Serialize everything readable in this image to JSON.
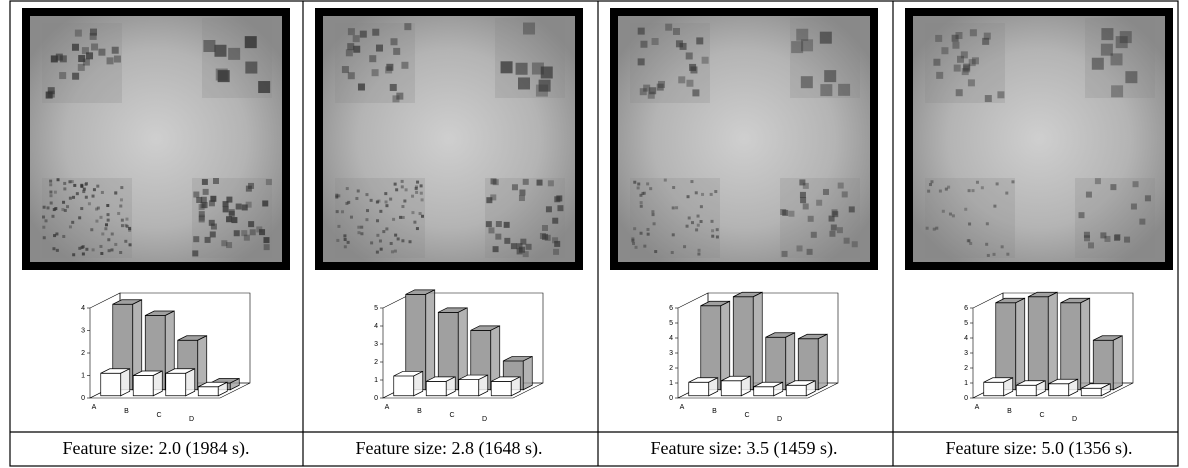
{
  "chart_data": [
    {
      "type": "bar3d",
      "title": "Feature size: 2.0 (1984 s).",
      "categories": [
        "A",
        "B",
        "C",
        "D"
      ],
      "series": [
        {
          "color": "#ffffff",
          "values": [
            1.0,
            0.9,
            1.0,
            0.4
          ]
        },
        {
          "color": "#a0a0a0",
          "values": [
            3.8,
            3.3,
            2.2,
            0.3
          ]
        }
      ],
      "ylim": [
        0,
        4
      ],
      "yticks": [
        0,
        1,
        2,
        3,
        4
      ]
    },
    {
      "type": "bar3d",
      "title": "Feature size: 2.8 (1648 s).",
      "categories": [
        "A",
        "B",
        "C",
        "D"
      ],
      "series": [
        {
          "color": "#ffffff",
          "values": [
            1.1,
            0.8,
            0.9,
            0.8
          ]
        },
        {
          "color": "#a0a0a0",
          "values": [
            5.3,
            4.3,
            3.3,
            1.6
          ]
        }
      ],
      "ylim": [
        0,
        5
      ],
      "yticks": [
        0,
        1,
        2,
        3,
        4,
        5
      ]
    },
    {
      "type": "bar3d",
      "title": "Feature size: 3.5 (1459 s).",
      "categories": [
        "A",
        "B",
        "C",
        "D"
      ],
      "series": [
        {
          "color": "#ffffff",
          "values": [
            0.9,
            1.0,
            0.6,
            0.7
          ]
        },
        {
          "color": "#a0a0a0",
          "values": [
            5.6,
            6.2,
            3.5,
            3.4
          ]
        }
      ],
      "ylim": [
        0,
        6
      ],
      "yticks": [
        0,
        1,
        2,
        3,
        4,
        5,
        6
      ]
    },
    {
      "type": "bar3d",
      "title": "Feature size: 5.0 (1356 s).",
      "categories": [
        "A",
        "B",
        "C",
        "D"
      ],
      "series": [
        {
          "color": "#ffffff",
          "values": [
            0.9,
            0.7,
            0.8,
            0.5
          ]
        },
        {
          "color": "#a0a0a0",
          "values": [
            5.8,
            6.2,
            5.8,
            3.3
          ]
        }
      ],
      "ylim": [
        0,
        6
      ],
      "yticks": [
        0,
        1,
        2,
        3,
        4,
        5,
        6
      ]
    }
  ]
}
